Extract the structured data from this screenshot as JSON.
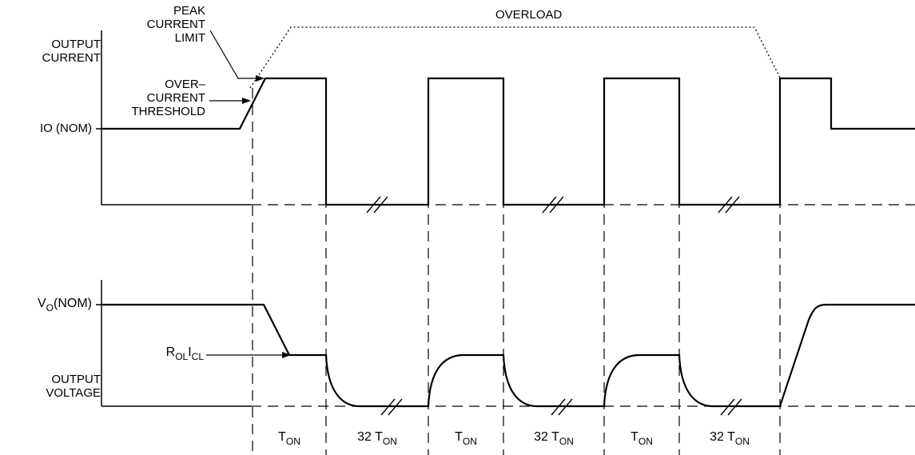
{
  "labels": {
    "output_current": [
      "OUTPUT",
      "CURRENT"
    ],
    "io_nom": "IO (NOM)",
    "peak_current_limit": [
      "PEAK",
      "CURRENT",
      "LIMIT"
    ],
    "overcurrent_threshold": [
      "OVER–",
      "CURRENT",
      "THRESHOLD"
    ],
    "overload": "OVERLOAD",
    "vo_nom": {
      "main": "V",
      "sub": "O",
      "rest": "(NOM)"
    },
    "rol_icl": {
      "pre": "R",
      "sub1": "OL",
      "mid": "I",
      "sub2": "CL"
    },
    "output_voltage": [
      "OUTPUT",
      "VOLTAGE"
    ]
  },
  "timing": [
    {
      "prefix": "",
      "main": "T",
      "sub": "ON"
    },
    {
      "prefix": "32 ",
      "main": "T",
      "sub": "ON"
    },
    {
      "prefix": "",
      "main": "T",
      "sub": "ON"
    },
    {
      "prefix": "32 ",
      "main": "T",
      "sub": "ON"
    },
    {
      "prefix": "",
      "main": "T",
      "sub": "ON"
    },
    {
      "prefix": "32 ",
      "main": "T",
      "sub": "ON"
    }
  ]
}
